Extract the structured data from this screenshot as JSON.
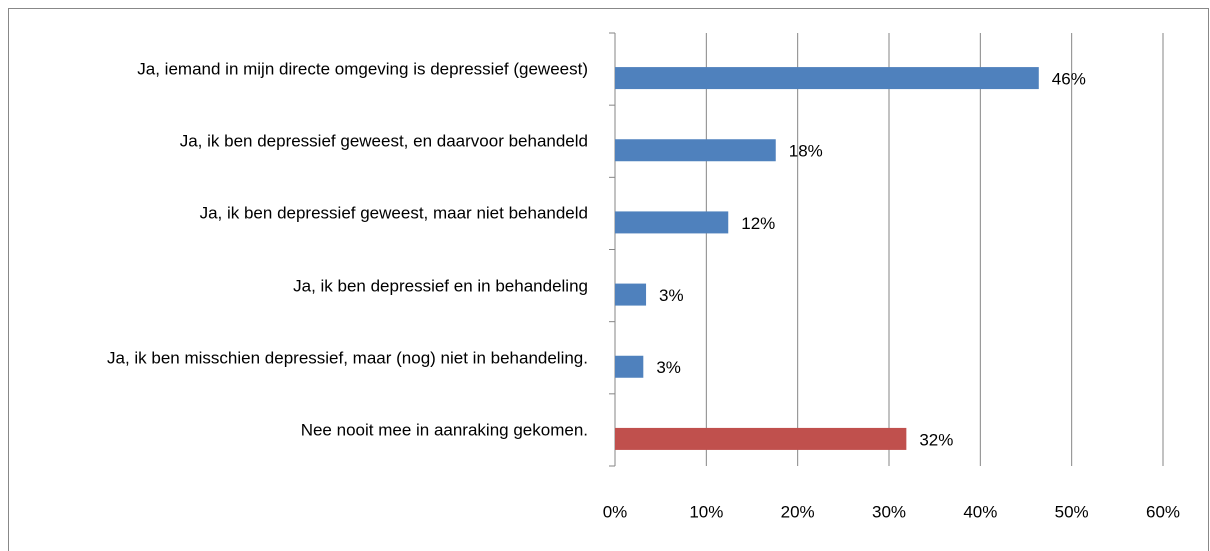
{
  "chart_data": {
    "type": "hbar",
    "categories": [
      "Ja, iemand in mijn directe omgeving is depressief (geweest)",
      "Ja, ik ben depressief geweest, en daarvoor behandeld",
      "Ja, ik ben depressief geweest, maar niet behandeld",
      "Ja, ik ben depressief en in behandeling",
      "Ja, ik ben misschien depressief, maar (nog) niet in behandeling.",
      "Nee nooit mee in aanraking gekomen."
    ],
    "values": [
      46.4,
      17.6,
      12.4,
      3.4,
      3.1,
      31.9
    ],
    "value_labels": [
      "46%",
      "18%",
      "12%",
      "3%",
      "3%",
      "32%"
    ],
    "colors": [
      "#4f81bd",
      "#4f81bd",
      "#4f81bd",
      "#4f81bd",
      "#4f81bd",
      "#c0504d"
    ],
    "xlim": [
      0,
      60
    ],
    "xticks": [
      {
        "value": 0,
        "label": "0%"
      },
      {
        "value": 10,
        "label": "10%"
      },
      {
        "value": 20,
        "label": "20%"
      },
      {
        "value": 30,
        "label": "30%"
      },
      {
        "value": 40,
        "label": "40%"
      },
      {
        "value": 50,
        "label": "50%"
      },
      {
        "value": 60,
        "label": "60%"
      }
    ],
    "grid": true
  }
}
